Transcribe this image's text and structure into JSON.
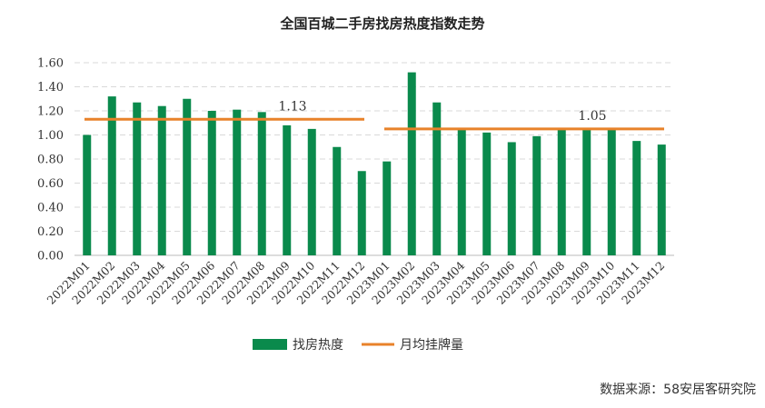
{
  "chart_data": {
    "type": "bar",
    "title": "全国百城二手房找房热度指数走势",
    "categories": [
      "2022M01",
      "2022M02",
      "2022M03",
      "2022M04",
      "2022M05",
      "2022M06",
      "2022M07",
      "2022M08",
      "2022M09",
      "2022M10",
      "2022M11",
      "2022M12",
      "2023M01",
      "2023M02",
      "2023M03",
      "2023M04",
      "2023M05",
      "2023M06",
      "2023M07",
      "2023M08",
      "2023M09",
      "2023M10",
      "2023M11",
      "2023M12"
    ],
    "series": [
      {
        "name": "找房热度",
        "type": "bar",
        "color": "#0a8a4c",
        "values": [
          1.0,
          1.32,
          1.27,
          1.24,
          1.3,
          1.2,
          1.21,
          1.19,
          1.08,
          1.05,
          0.9,
          0.7,
          0.78,
          1.52,
          1.27,
          1.05,
          1.02,
          0.94,
          0.99,
          1.05,
          1.05,
          1.05,
          0.95,
          0.92
        ]
      },
      {
        "name": "月均挂牌量",
        "type": "line",
        "color": "#e8822a",
        "segments": [
          {
            "from": "2022M01",
            "to": "2022M12",
            "value": 1.13,
            "label": "1.13"
          },
          {
            "from": "2023M01",
            "to": "2023M12",
            "value": 1.05,
            "label": "1.05"
          }
        ]
      }
    ],
    "ylim": [
      0,
      1.6
    ],
    "yticks": [
      "0.00",
      "0.20",
      "0.40",
      "0.60",
      "0.80",
      "1.00",
      "1.20",
      "1.40",
      "1.60"
    ],
    "grid": true,
    "legend": "bottom-center"
  },
  "source": "数据来源：58安居客研究院"
}
